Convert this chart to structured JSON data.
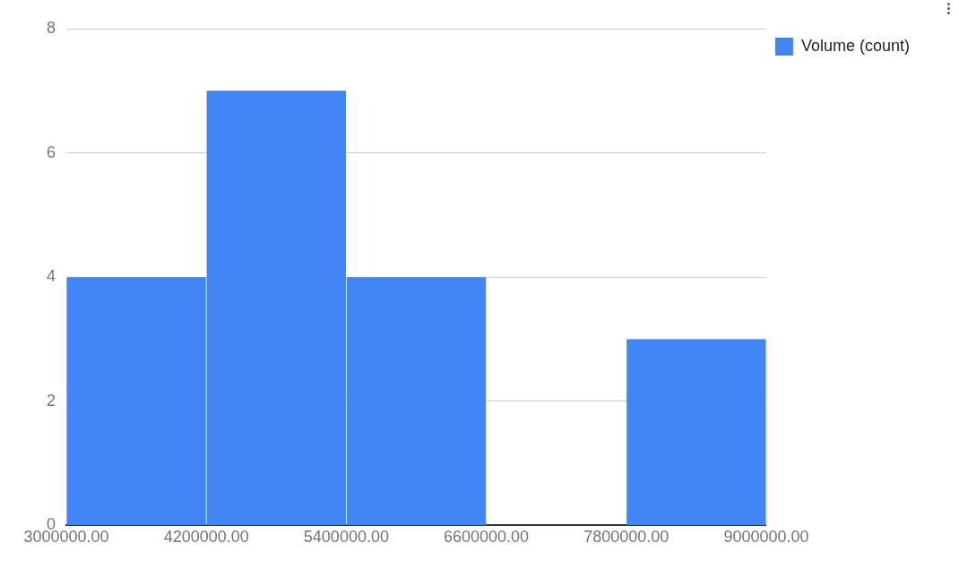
{
  "chart_data": {
    "type": "histogram",
    "bins": [
      3000000,
      4200000,
      5400000,
      6600000,
      7800000,
      9000000
    ],
    "series": [
      {
        "name": "Volume (count)",
        "color": "#4285f4",
        "values": [
          4,
          7,
          4,
          0,
          3
        ]
      }
    ],
    "xlim": [
      3000000,
      9000000
    ],
    "xticks": [
      {
        "value": 3000000,
        "label": "3000000.00"
      },
      {
        "value": 4200000,
        "label": "4200000.00"
      },
      {
        "value": 5400000,
        "label": "5400000.00"
      },
      {
        "value": 6600000,
        "label": "6600000.00"
      },
      {
        "value": 7800000,
        "label": "7800000.00"
      },
      {
        "value": 9000000,
        "label": "9000000.00"
      }
    ],
    "ylim": [
      0,
      8
    ],
    "yticks": [
      0,
      2,
      4,
      6,
      8
    ],
    "grid": "y",
    "legend": "top right"
  }
}
